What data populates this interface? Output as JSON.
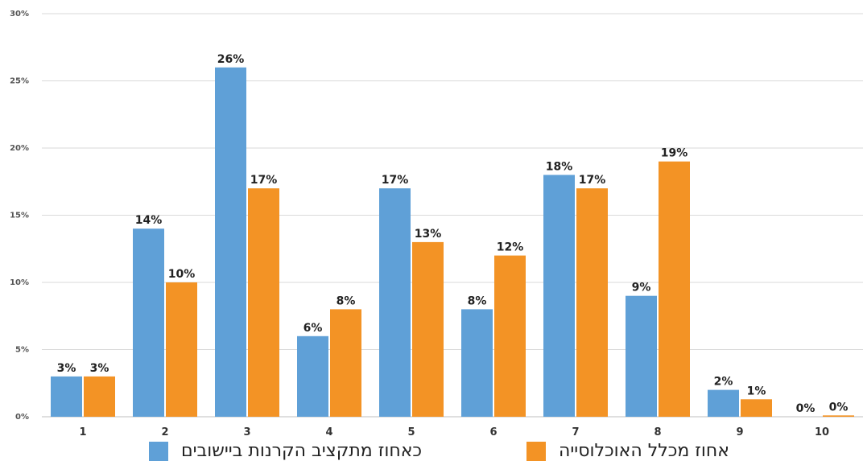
{
  "chart_data": {
    "type": "bar",
    "title": "",
    "xlabel": "",
    "ylabel": "",
    "categories": [
      "1",
      "2",
      "3",
      "4",
      "5",
      "6",
      "7",
      "8",
      "9",
      "10"
    ],
    "ylim": [
      0,
      30
    ],
    "yticks": [
      "0%",
      "5%",
      "10%",
      "15%",
      "20%",
      "25%",
      "30%"
    ],
    "grid": true,
    "legend_position": "bottom",
    "series": [
      {
        "name": "כאחוז מתקציב הקרנות ביישובים",
        "color": "#5fa0d7",
        "values": [
          3,
          14,
          26,
          6,
          17,
          8,
          18,
          9,
          2,
          0
        ],
        "labels": [
          "3%",
          "14%",
          "26%",
          "6%",
          "17%",
          "8%",
          "18%",
          "9%",
          "2%",
          "0%"
        ]
      },
      {
        "name": "אחוז מכלל האוכלוסייה",
        "color": "#f39325",
        "values": [
          3,
          10,
          17,
          8,
          13,
          12,
          17,
          19,
          1.3,
          0.1
        ],
        "labels": [
          "3%",
          "10%",
          "17%",
          "8%",
          "13%",
          "12%",
          "17%",
          "19%",
          "1%",
          "0%"
        ]
      }
    ]
  }
}
